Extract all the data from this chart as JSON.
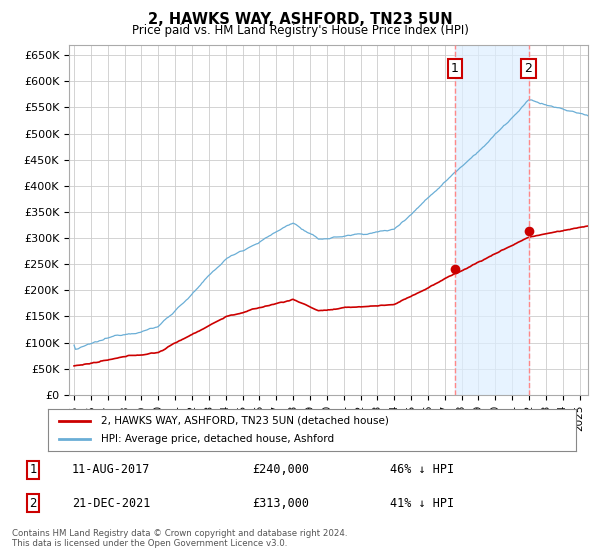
{
  "title": "2, HAWKS WAY, ASHFORD, TN23 5UN",
  "subtitle": "Price paid vs. HM Land Registry's House Price Index (HPI)",
  "hpi_color": "#6aaed6",
  "price_color": "#cc0000",
  "marker_color": "#cc0000",
  "vline_color": "#ff8888",
  "shade_color": "#ddeeff",
  "bg_color": "#ffffff",
  "grid_color": "#cccccc",
  "ylabel_vals": [
    0,
    50000,
    100000,
    150000,
    200000,
    250000,
    300000,
    350000,
    400000,
    450000,
    500000,
    550000,
    600000,
    650000
  ],
  "ylabel_texts": [
    "£0",
    "£50K",
    "£100K",
    "£150K",
    "£200K",
    "£250K",
    "£300K",
    "£350K",
    "£400K",
    "£450K",
    "£500K",
    "£550K",
    "£600K",
    "£650K"
  ],
  "xlim_start": 1994.7,
  "xlim_end": 2025.5,
  "ylim_min": 0,
  "ylim_max": 670000,
  "sale1_year": 2017.61,
  "sale1_price": 240000,
  "sale2_year": 2021.97,
  "sale2_price": 313000,
  "legend_label1": "2, HAWKS WAY, ASHFORD, TN23 5UN (detached house)",
  "legend_label2": "HPI: Average price, detached house, Ashford",
  "note1_label": "1",
  "note1_date": "11-AUG-2017",
  "note1_price": "£240,000",
  "note1_pct": "46% ↓ HPI",
  "note2_label": "2",
  "note2_date": "21-DEC-2021",
  "note2_price": "£313,000",
  "note2_pct": "41% ↓ HPI",
  "footer": "Contains HM Land Registry data © Crown copyright and database right 2024.\nThis data is licensed under the Open Government Licence v3.0."
}
